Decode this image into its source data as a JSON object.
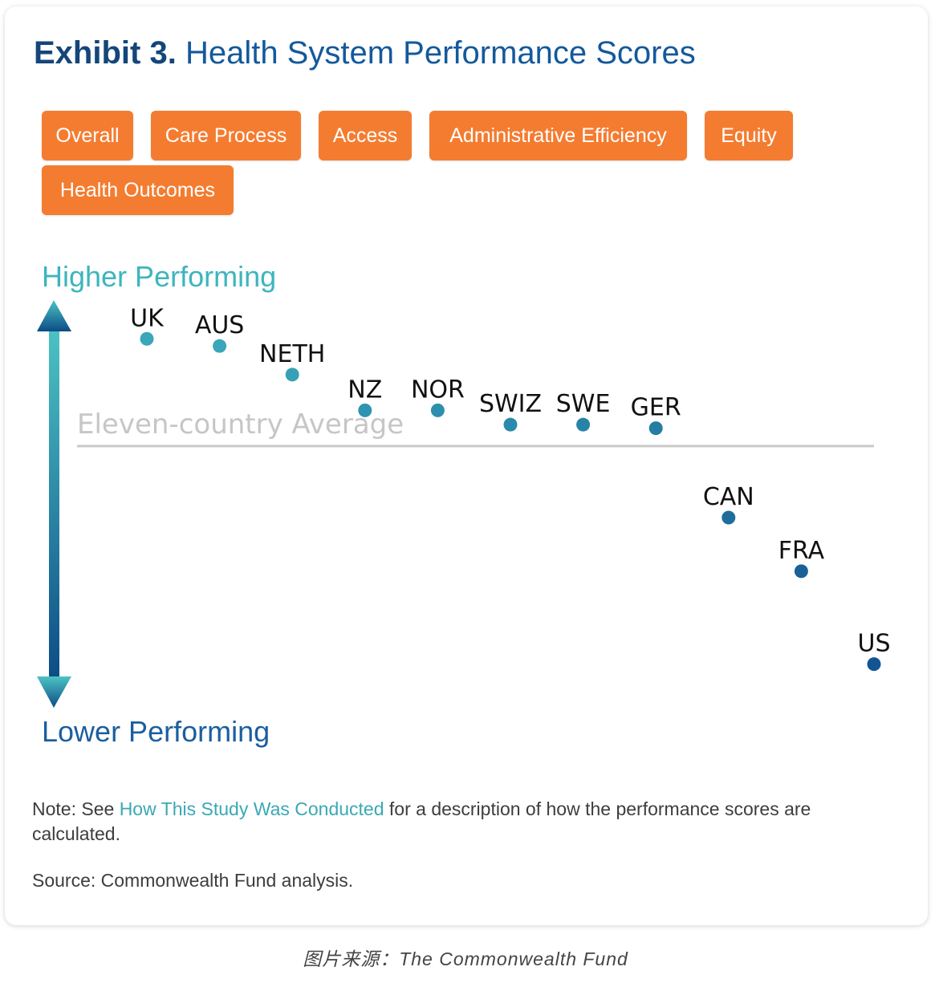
{
  "title": {
    "prefix": "Exhibit 3.",
    "main": "Health System Performance Scores"
  },
  "tabs": [
    "Overall",
    "Care Process",
    "Access",
    "Administrative Efficiency",
    "Equity",
    "Health Outcomes"
  ],
  "colors": {
    "title": "#14599b",
    "tab_bg": "#f47c30",
    "tab_text": "#ffffff",
    "higher_label": "#3db5bd",
    "lower_label": "#1b5e9e",
    "arrow_top": "#4cc3c4",
    "arrow_bottom": "#0c4c86",
    "average_line": "#c9c9c9",
    "average_label": "#c6c6c6",
    "note_link": "#3aa9b4"
  },
  "chart_data": {
    "type": "scatter",
    "title": "Health System Performance Scores",
    "ylabel_top": "Higher Performing",
    "ylabel_bottom": "Lower Performing",
    "reference_line": {
      "label": "Eleven-country Average",
      "value": 0
    },
    "ylim": [
      -0.75,
      0.35
    ],
    "x_labels_shown": false,
    "y_ticks_shown": false,
    "grid": false,
    "points": [
      {
        "label": "UK",
        "rank": 1,
        "score": 0.3,
        "color": "#3aa6b9"
      },
      {
        "label": "AUS",
        "rank": 2,
        "score": 0.28,
        "color": "#3aa6b9"
      },
      {
        "label": "NETH",
        "rank": 3,
        "score": 0.2,
        "color": "#37a0b6"
      },
      {
        "label": "NZ",
        "rank": 4,
        "score": 0.1,
        "color": "#2f94b1"
      },
      {
        "label": "NOR",
        "rank": 5,
        "score": 0.1,
        "color": "#2c8fae"
      },
      {
        "label": "SWIZ",
        "rank": 6,
        "score": 0.06,
        "color": "#2a8aab"
      },
      {
        "label": "SWE",
        "rank": 7,
        "score": 0.06,
        "color": "#2784a7"
      },
      {
        "label": "GER",
        "rank": 8,
        "score": 0.05,
        "color": "#247da3"
      },
      {
        "label": "CAN",
        "rank": 9,
        "score": -0.2,
        "color": "#1f6d9d"
      },
      {
        "label": "FRA",
        "rank": 10,
        "score": -0.35,
        "color": "#1a6198"
      },
      {
        "label": "US",
        "rank": 11,
        "score": -0.61,
        "color": "#135592"
      }
    ]
  },
  "note": {
    "prefix": "Note: See ",
    "link": "How This Study Was Conducted",
    "suffix": " for a description of how the performance scores are calculated."
  },
  "source": "Source: Commonwealth Fund analysis.",
  "caption": "图片来源：The Commonwealth Fund"
}
